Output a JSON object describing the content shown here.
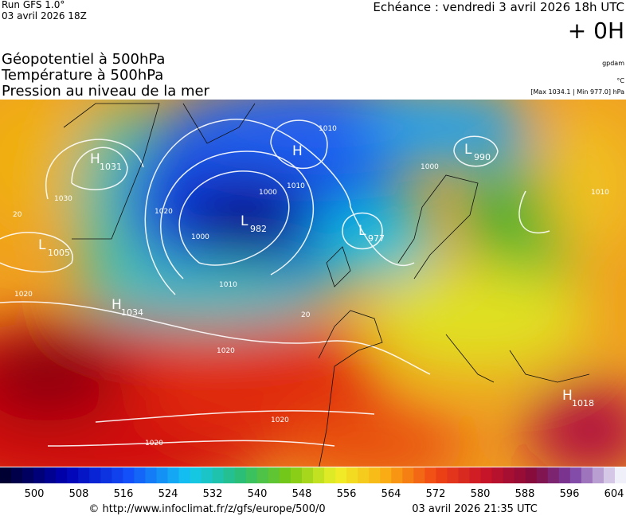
{
  "header": {
    "run": "Run GFS 1.0°",
    "date": "03 avril 2026 18Z",
    "echeance": "Echéance : vendredi 3 avril 2026 18h UTC",
    "offset": "+ 0H"
  },
  "titles": [
    "Géopotentiel à 500hPa",
    "Température à 500hPa",
    "Pression au niveau de la mer"
  ],
  "units": {
    "geopotential": "gpdam",
    "temperature": "°C",
    "pressure": "[Max 1034.1 | Min 977.0] hPa"
  },
  "centers": [
    {
      "symbol": "H",
      "value": 1031
    },
    {
      "symbol": "L",
      "value": 1005
    },
    {
      "symbol": "H",
      "value": 1034
    },
    {
      "symbol": "L",
      "value": 982
    },
    {
      "symbol": "H"
    },
    {
      "symbol": "L",
      "value": 977
    },
    {
      "symbol": "L",
      "value": 990
    },
    {
      "symbol": "H",
      "value": 1018
    }
  ],
  "isobar_labels": [
    1030,
    1020,
    1020,
    1020,
    1020,
    1020,
    1010,
    1000,
    1000,
    1010,
    1010,
    1000,
    1010,
    20,
    20
  ],
  "colorbar": {
    "ticks": [
      500,
      508,
      516,
      524,
      532,
      540,
      548,
      556,
      564,
      572,
      580,
      588,
      596,
      604
    ]
  },
  "footer": {
    "url": "© http://www.infoclimat.fr/z/gfs/europe/500/0",
    "timestamp": "03 avril 2026 21:35 UTC"
  }
}
